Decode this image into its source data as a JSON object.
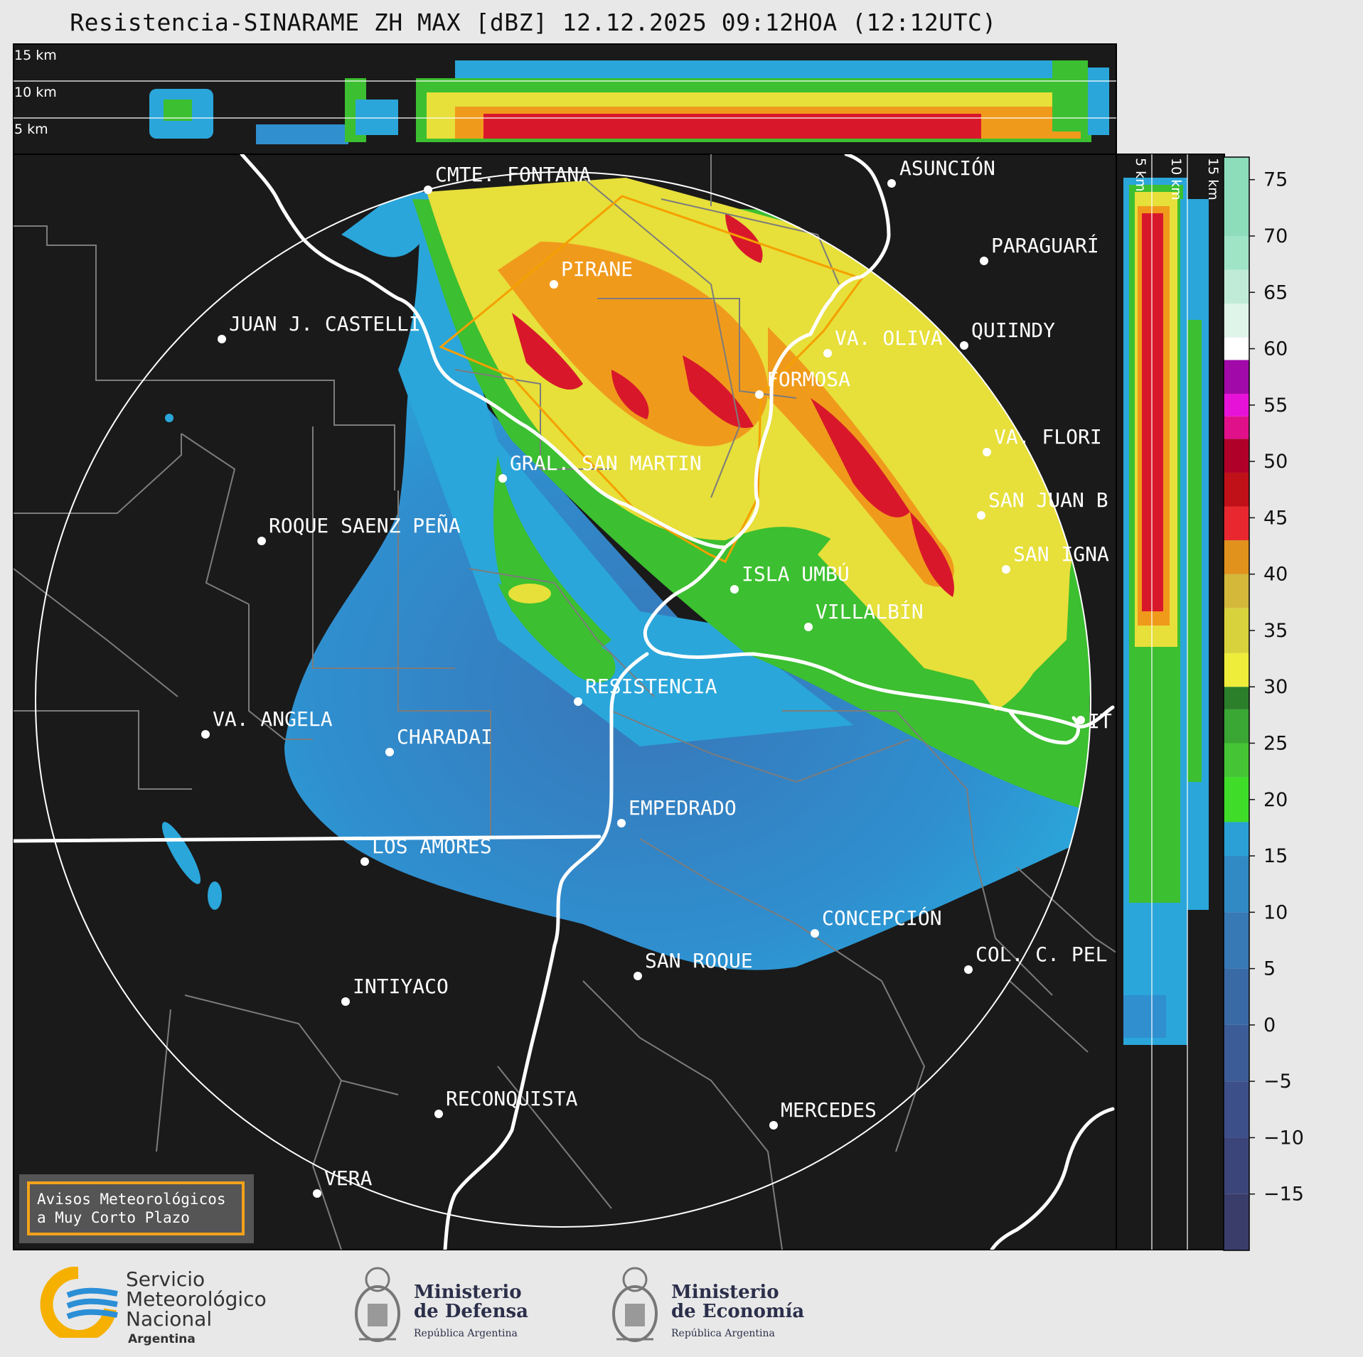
{
  "title": "Resistencia-SINARAME ZH MAX [dBZ] 12.12.2025 09:12HOA (12:12UTC)",
  "cross_section_top": {
    "height_labels": [
      "15 km",
      "10 km",
      "5 km"
    ]
  },
  "cross_section_right": {
    "height_labels": [
      "5 km",
      "10 km",
      "15 km"
    ]
  },
  "colorbar": {
    "unit": "dBZ",
    "ticks": [
      "75",
      "70",
      "65",
      "60",
      "55",
      "50",
      "45",
      "40",
      "35",
      "30",
      "25",
      "20",
      "15",
      "10",
      "5",
      "0",
      "−5",
      "−10",
      "−15"
    ]
  },
  "places": [
    {
      "name": "CMTE. FONTANA"
    },
    {
      "name": "ASUNCIÓN"
    },
    {
      "name": "PARAGUARÍ"
    },
    {
      "name": "PIRANE"
    },
    {
      "name": "JUAN J. CASTELLI"
    },
    {
      "name": "VA. OLIVA"
    },
    {
      "name": "QUIINDY"
    },
    {
      "name": "FORMOSA"
    },
    {
      "name": "VA. FLORI"
    },
    {
      "name": "GRAL. SAN MARTIN"
    },
    {
      "name": "SAN JUAN B"
    },
    {
      "name": "ROQUE SAENZ PEÑA"
    },
    {
      "name": "SAN IGNA"
    },
    {
      "name": "ISLA UMBÚ"
    },
    {
      "name": "VILLALBÍN"
    },
    {
      "name": "RESISTENCIA"
    },
    {
      "name": "VA. ANGELA"
    },
    {
      "name": "CHARADAI"
    },
    {
      "name": "IT"
    },
    {
      "name": "EMPEDRADO"
    },
    {
      "name": "LOS AMORES"
    },
    {
      "name": "CONCEPCIÓN"
    },
    {
      "name": "SAN ROQUE"
    },
    {
      "name": "COL. C. PEL"
    },
    {
      "name": "INTIYACO"
    },
    {
      "name": "RECONQUISTA"
    },
    {
      "name": "MERCEDES"
    },
    {
      "name": "VERA"
    }
  ],
  "notice": {
    "line1": "Avisos Meteorológicos",
    "line2": "a Muy Corto Plazo"
  },
  "footer": {
    "smn": {
      "line1": "Servicio",
      "line2": "Meteorológico",
      "line3": "Nacional",
      "line4": "Argentina"
    },
    "defensa": {
      "line1": "Ministerio",
      "line2": "de Defensa",
      "line3": "República Argentina"
    },
    "economia": {
      "line1": "Ministerio",
      "line2": "de Economía",
      "line3": "República Argentina"
    }
  },
  "colors": {
    "map_bg": "#1a1a1a",
    "warning_polygon": "#f5a000",
    "light_blue": "#2aa3d8",
    "blue": "#3a82c4",
    "green": "#3cbf30",
    "yellow": "#e7df3a",
    "orange": "#f09a1c",
    "red": "#d8182a"
  }
}
